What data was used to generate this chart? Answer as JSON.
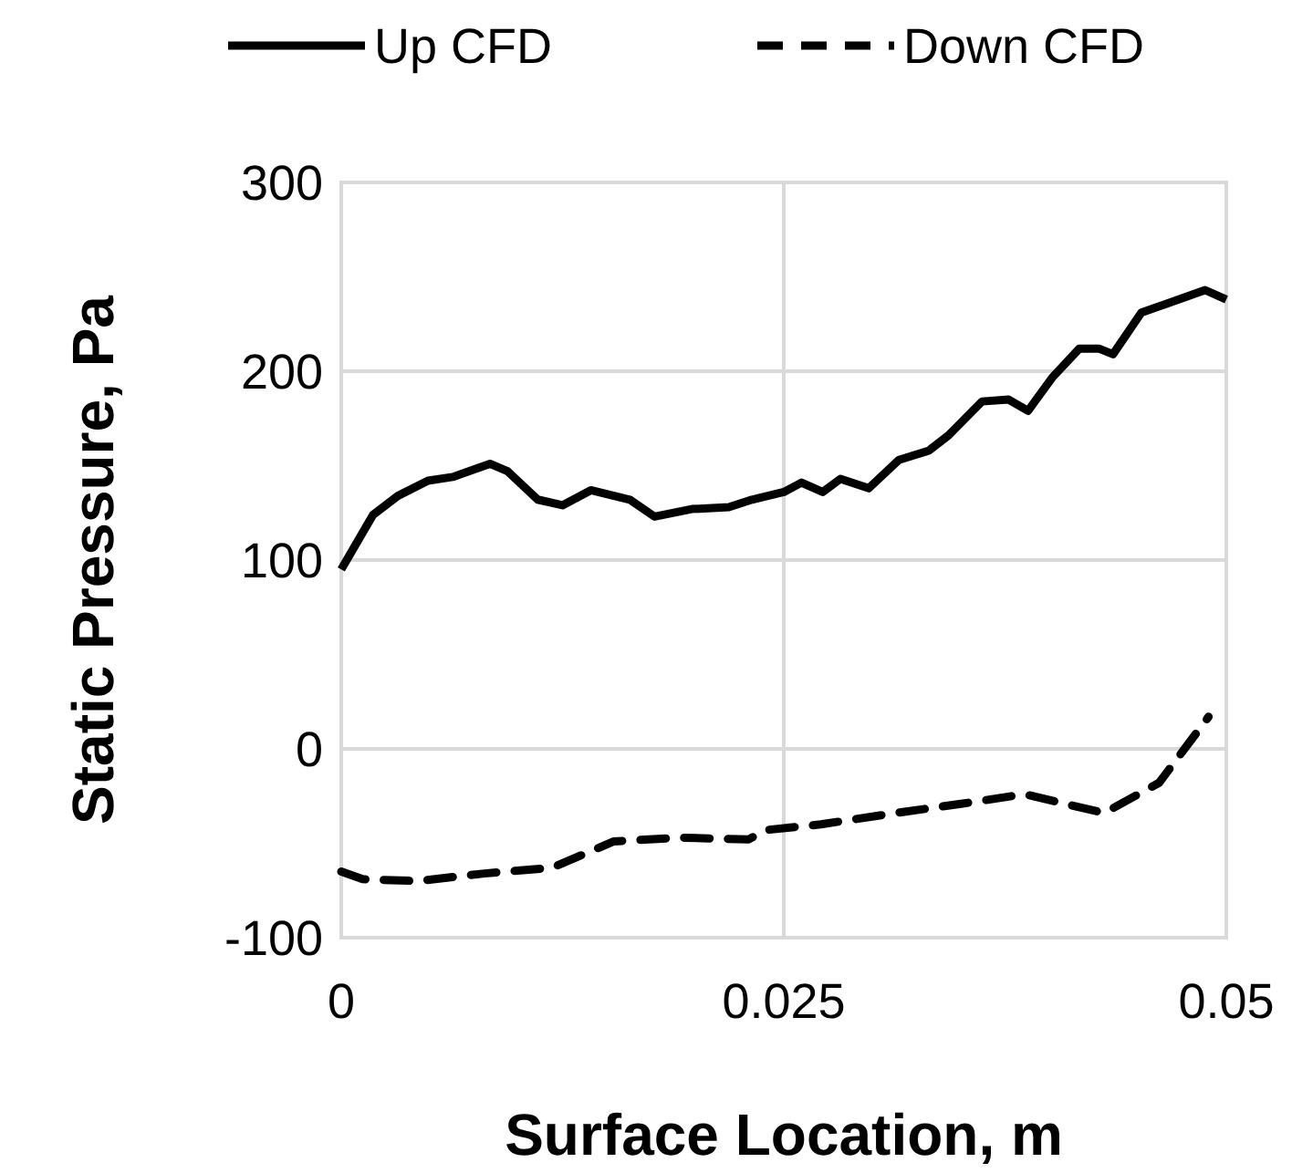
{
  "chart_data": {
    "type": "line",
    "xlabel": "Surface Location, m",
    "ylabel": "Static Pressure, Pa",
    "xlim": [
      0,
      0.05
    ],
    "xticks": [
      0,
      0.025,
      0.05
    ],
    "ylim": [
      -100,
      300
    ],
    "yticks": [
      -100,
      0,
      100,
      200,
      300
    ],
    "grid": true,
    "legend": "top",
    "marker": "none",
    "series": [
      {
        "name": "Up CFD",
        "color": "#000000",
        "line_style": "solid",
        "x": [
          0,
          0.0018,
          0.0032,
          0.0049,
          0.0063,
          0.0084,
          0.0094,
          0.0111,
          0.0125,
          0.0141,
          0.0163,
          0.0177,
          0.0198,
          0.0219,
          0.0232,
          0.025,
          0.026,
          0.0272,
          0.0282,
          0.0298,
          0.0315,
          0.0332,
          0.0343,
          0.0362,
          0.0377,
          0.0388,
          0.0402,
          0.0417,
          0.0428,
          0.0436,
          0.0452,
          0.0467,
          0.0488,
          0.05
        ],
        "values": [
          95,
          124,
          134,
          142,
          144,
          151,
          147,
          132,
          129,
          137,
          132,
          123,
          127,
          128,
          132,
          136,
          141,
          136,
          143,
          138,
          153,
          158,
          166,
          184,
          185,
          179,
          197,
          212,
          212,
          209,
          231,
          236,
          243,
          238
        ]
      },
      {
        "name": "Down CFD",
        "color": "#000000",
        "line_style": "dashed",
        "x": [
          0,
          0.0012,
          0.0043,
          0.0081,
          0.0119,
          0.0154,
          0.0192,
          0.023,
          0.024,
          0.0271,
          0.0313,
          0.0351,
          0.0386,
          0.0431,
          0.0462,
          0.049
        ],
        "values": [
          -65,
          -69,
          -70,
          -66,
          -63,
          -49,
          -47,
          -48,
          -43,
          -40,
          -34,
          -29,
          -24,
          -34,
          -18,
          17
        ]
      }
    ]
  }
}
